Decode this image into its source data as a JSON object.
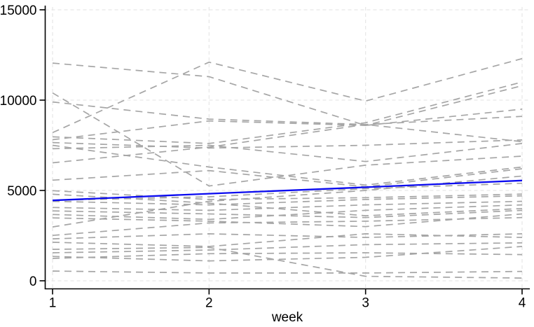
{
  "chart_data": {
    "type": "line",
    "title": "",
    "xlabel": "week",
    "ylabel": "",
    "x": [
      1,
      2,
      3,
      4
    ],
    "x_tick_labels": [
      "1",
      "2",
      "3",
      "4"
    ],
    "y_tick_labels": [
      "0",
      "5000",
      "10000",
      "15000"
    ],
    "y_ticks": [
      0,
      5000,
      10000,
      15000
    ],
    "xlim": [
      1,
      4
    ],
    "ylim": [
      0,
      15000
    ],
    "grid": "both-axes light dashed gridlines at every tick",
    "legend": "none",
    "style": {
      "trajectory_color": "#a6a6a6",
      "trajectory_dash": "dashed",
      "trend_color": "#0a0af0",
      "grid_color": "#e7e7e7",
      "axis_color": "#000000",
      "background": "#ffffff"
    },
    "trend": {
      "name": "linear-trend",
      "line": "solid blue",
      "values": [
        4450,
        4820,
        5180,
        5550
      ]
    },
    "trajectories": [
      {
        "values": [
          12050,
          11300,
          8600,
          9500
        ]
      },
      {
        "values": [
          8200,
          12100,
          9950,
          12300
        ]
      },
      {
        "values": [
          9900,
          8950,
          8650,
          9100
        ]
      },
      {
        "values": [
          10400,
          5250,
          6400,
          6900
        ]
      },
      {
        "values": [
          7970,
          7600,
          8750,
          11000
        ]
      },
      {
        "values": [
          7810,
          8850,
          8600,
          10800
        ]
      },
      {
        "values": [
          7650,
          7350,
          7500,
          7800
        ]
      },
      {
        "values": [
          7500,
          6300,
          5300,
          6300
        ]
      },
      {
        "values": [
          7310,
          7500,
          6600,
          7600
        ]
      },
      {
        "values": [
          6530,
          7400,
          8650,
          7700
        ]
      },
      {
        "values": [
          5570,
          6100,
          5200,
          6200
        ]
      },
      {
        "values": [
          4990,
          4500,
          4600,
          4800
        ]
      },
      {
        "values": [
          4790,
          4300,
          3600,
          4000
        ]
      },
      {
        "values": [
          4450,
          4650,
          5100,
          5400
        ]
      },
      {
        "values": [
          4400,
          4200,
          4500,
          4700
        ]
      },
      {
        "values": [
          4060,
          3900,
          4200,
          4400
        ]
      },
      {
        "values": [
          3870,
          3700,
          3500,
          3900
        ]
      },
      {
        "values": [
          3670,
          3400,
          3900,
          4200
        ]
      },
      {
        "values": [
          3480,
          3300,
          3000,
          3700
        ]
      },
      {
        "values": [
          2980,
          4400,
          5000,
          5800
        ]
      },
      {
        "values": [
          2510,
          3200,
          3300,
          3500
        ]
      },
      {
        "values": [
          2320,
          2600,
          2400,
          2600
        ]
      },
      {
        "values": [
          2130,
          1900,
          2600,
          2400
        ]
      },
      {
        "values": [
          1740,
          1850,
          250,
          150
        ]
      },
      {
        "values": [
          1550,
          1700,
          2000,
          2100
        ]
      },
      {
        "values": [
          1350,
          1100,
          1300,
          1900
        ]
      },
      {
        "values": [
          1240,
          1500,
          1550,
          1450
        ]
      },
      {
        "values": [
          540,
          430,
          430,
          520
        ]
      }
    ]
  }
}
